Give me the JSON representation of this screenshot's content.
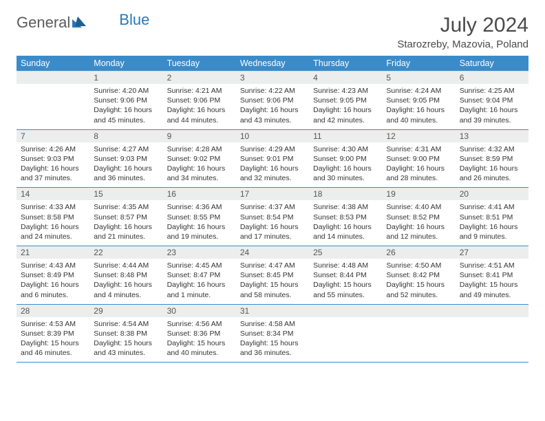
{
  "logo": {
    "part1": "General",
    "part2": "Blue"
  },
  "title": "July 2024",
  "location": "Starozreby, Mazovia, Poland",
  "colors": {
    "header_bg": "#3b8bc9",
    "header_text": "#ffffff",
    "daynum_bg": "#eceded",
    "text": "#3a3a3a",
    "rule": "#3b8bc9",
    "logo_gray": "#5a5a5a",
    "logo_blue": "#2779bd"
  },
  "weekdays": [
    "Sunday",
    "Monday",
    "Tuesday",
    "Wednesday",
    "Thursday",
    "Friday",
    "Saturday"
  ],
  "weeks": [
    [
      {
        "n": "",
        "lines": []
      },
      {
        "n": "1",
        "lines": [
          "Sunrise: 4:20 AM",
          "Sunset: 9:06 PM",
          "Daylight: 16 hours",
          "and 45 minutes."
        ]
      },
      {
        "n": "2",
        "lines": [
          "Sunrise: 4:21 AM",
          "Sunset: 9:06 PM",
          "Daylight: 16 hours",
          "and 44 minutes."
        ]
      },
      {
        "n": "3",
        "lines": [
          "Sunrise: 4:22 AM",
          "Sunset: 9:06 PM",
          "Daylight: 16 hours",
          "and 43 minutes."
        ]
      },
      {
        "n": "4",
        "lines": [
          "Sunrise: 4:23 AM",
          "Sunset: 9:05 PM",
          "Daylight: 16 hours",
          "and 42 minutes."
        ]
      },
      {
        "n": "5",
        "lines": [
          "Sunrise: 4:24 AM",
          "Sunset: 9:05 PM",
          "Daylight: 16 hours",
          "and 40 minutes."
        ]
      },
      {
        "n": "6",
        "lines": [
          "Sunrise: 4:25 AM",
          "Sunset: 9:04 PM",
          "Daylight: 16 hours",
          "and 39 minutes."
        ]
      }
    ],
    [
      {
        "n": "7",
        "lines": [
          "Sunrise: 4:26 AM",
          "Sunset: 9:03 PM",
          "Daylight: 16 hours",
          "and 37 minutes."
        ]
      },
      {
        "n": "8",
        "lines": [
          "Sunrise: 4:27 AM",
          "Sunset: 9:03 PM",
          "Daylight: 16 hours",
          "and 36 minutes."
        ]
      },
      {
        "n": "9",
        "lines": [
          "Sunrise: 4:28 AM",
          "Sunset: 9:02 PM",
          "Daylight: 16 hours",
          "and 34 minutes."
        ]
      },
      {
        "n": "10",
        "lines": [
          "Sunrise: 4:29 AM",
          "Sunset: 9:01 PM",
          "Daylight: 16 hours",
          "and 32 minutes."
        ]
      },
      {
        "n": "11",
        "lines": [
          "Sunrise: 4:30 AM",
          "Sunset: 9:00 PM",
          "Daylight: 16 hours",
          "and 30 minutes."
        ]
      },
      {
        "n": "12",
        "lines": [
          "Sunrise: 4:31 AM",
          "Sunset: 9:00 PM",
          "Daylight: 16 hours",
          "and 28 minutes."
        ]
      },
      {
        "n": "13",
        "lines": [
          "Sunrise: 4:32 AM",
          "Sunset: 8:59 PM",
          "Daylight: 16 hours",
          "and 26 minutes."
        ]
      }
    ],
    [
      {
        "n": "14",
        "lines": [
          "Sunrise: 4:33 AM",
          "Sunset: 8:58 PM",
          "Daylight: 16 hours",
          "and 24 minutes."
        ]
      },
      {
        "n": "15",
        "lines": [
          "Sunrise: 4:35 AM",
          "Sunset: 8:57 PM",
          "Daylight: 16 hours",
          "and 21 minutes."
        ]
      },
      {
        "n": "16",
        "lines": [
          "Sunrise: 4:36 AM",
          "Sunset: 8:55 PM",
          "Daylight: 16 hours",
          "and 19 minutes."
        ]
      },
      {
        "n": "17",
        "lines": [
          "Sunrise: 4:37 AM",
          "Sunset: 8:54 PM",
          "Daylight: 16 hours",
          "and 17 minutes."
        ]
      },
      {
        "n": "18",
        "lines": [
          "Sunrise: 4:38 AM",
          "Sunset: 8:53 PM",
          "Daylight: 16 hours",
          "and 14 minutes."
        ]
      },
      {
        "n": "19",
        "lines": [
          "Sunrise: 4:40 AM",
          "Sunset: 8:52 PM",
          "Daylight: 16 hours",
          "and 12 minutes."
        ]
      },
      {
        "n": "20",
        "lines": [
          "Sunrise: 4:41 AM",
          "Sunset: 8:51 PM",
          "Daylight: 16 hours",
          "and 9 minutes."
        ]
      }
    ],
    [
      {
        "n": "21",
        "lines": [
          "Sunrise: 4:43 AM",
          "Sunset: 8:49 PM",
          "Daylight: 16 hours",
          "and 6 minutes."
        ]
      },
      {
        "n": "22",
        "lines": [
          "Sunrise: 4:44 AM",
          "Sunset: 8:48 PM",
          "Daylight: 16 hours",
          "and 4 minutes."
        ]
      },
      {
        "n": "23",
        "lines": [
          "Sunrise: 4:45 AM",
          "Sunset: 8:47 PM",
          "Daylight: 16 hours",
          "and 1 minute."
        ]
      },
      {
        "n": "24",
        "lines": [
          "Sunrise: 4:47 AM",
          "Sunset: 8:45 PM",
          "Daylight: 15 hours",
          "and 58 minutes."
        ]
      },
      {
        "n": "25",
        "lines": [
          "Sunrise: 4:48 AM",
          "Sunset: 8:44 PM",
          "Daylight: 15 hours",
          "and 55 minutes."
        ]
      },
      {
        "n": "26",
        "lines": [
          "Sunrise: 4:50 AM",
          "Sunset: 8:42 PM",
          "Daylight: 15 hours",
          "and 52 minutes."
        ]
      },
      {
        "n": "27",
        "lines": [
          "Sunrise: 4:51 AM",
          "Sunset: 8:41 PM",
          "Daylight: 15 hours",
          "and 49 minutes."
        ]
      }
    ],
    [
      {
        "n": "28",
        "lines": [
          "Sunrise: 4:53 AM",
          "Sunset: 8:39 PM",
          "Daylight: 15 hours",
          "and 46 minutes."
        ]
      },
      {
        "n": "29",
        "lines": [
          "Sunrise: 4:54 AM",
          "Sunset: 8:38 PM",
          "Daylight: 15 hours",
          "and 43 minutes."
        ]
      },
      {
        "n": "30",
        "lines": [
          "Sunrise: 4:56 AM",
          "Sunset: 8:36 PM",
          "Daylight: 15 hours",
          "and 40 minutes."
        ]
      },
      {
        "n": "31",
        "lines": [
          "Sunrise: 4:58 AM",
          "Sunset: 8:34 PM",
          "Daylight: 15 hours",
          "and 36 minutes."
        ]
      },
      {
        "n": "",
        "lines": []
      },
      {
        "n": "",
        "lines": []
      },
      {
        "n": "",
        "lines": []
      }
    ]
  ]
}
